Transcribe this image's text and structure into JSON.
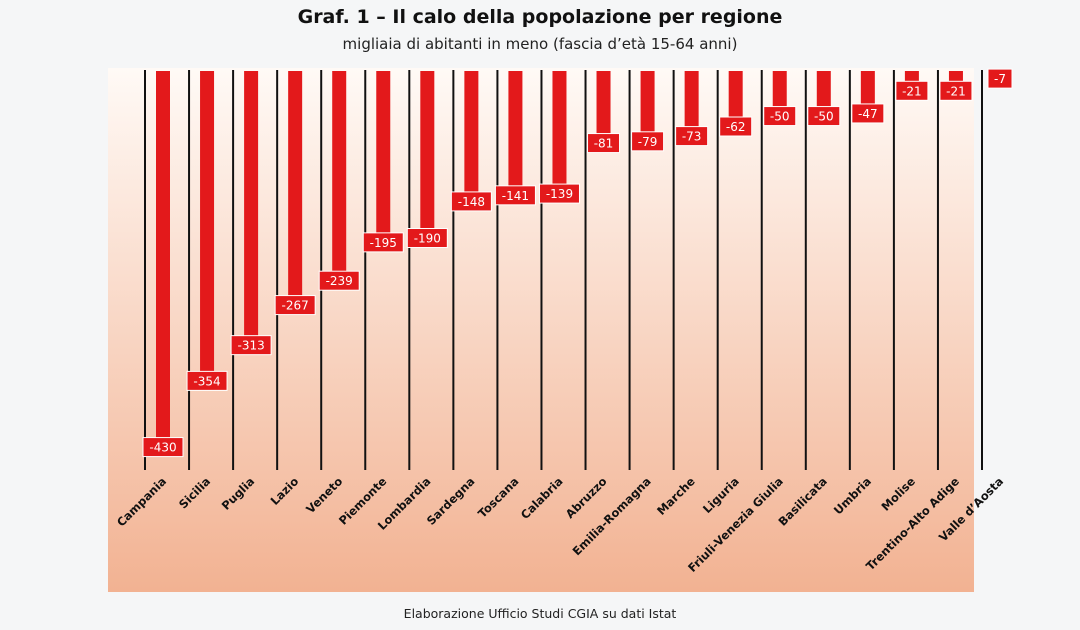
{
  "chart_data": {
    "type": "bar",
    "title": "Graf. 1 – Il calo della popolazione per regione",
    "subtitle": "migliaia di abitanti in meno (fascia d’età 15-64 anni)",
    "source": "Elaborazione Ufficio Studi CGIA su dati Istat",
    "categories": [
      "Campania",
      "Sicilia",
      "Puglia",
      "Lazio",
      "Veneto",
      "Piemonte",
      "Lombardia",
      "Sardegna",
      "Toscana",
      "Calabria",
      "Abruzzo",
      "Emilia-Romagna",
      "Marche",
      "Liguria",
      "Friuli-Venezia Giulia",
      "Basilicata",
      "Umbria",
      "Molise",
      "Trentino-Alto Adige",
      "Valle d’Aosta"
    ],
    "values": [
      -430,
      -354,
      -313,
      -267,
      -239,
      -195,
      -190,
      -148,
      -141,
      -139,
      -81,
      -79,
      -73,
      -62,
      -50,
      -50,
      -47,
      -21,
      -21,
      -7
    ],
    "labels": [
      "-430",
      "-354",
      "-313",
      "-267",
      "-239",
      "-195",
      "-190",
      "-148",
      "-141",
      "-139",
      "-81",
      "-79",
      "-73",
      "-62",
      "-50",
      "-50",
      "-47",
      "-21",
      "-21",
      "-7"
    ],
    "ylim": [
      -450,
      0
    ],
    "grid": false,
    "colors": {
      "bar": "#e3191b",
      "label_bg": "#e3191b",
      "label_text": "#ffffff",
      "divider": "#111111",
      "bg_top": "#fffaf6",
      "bg_bottom": "#f2b292"
    }
  }
}
